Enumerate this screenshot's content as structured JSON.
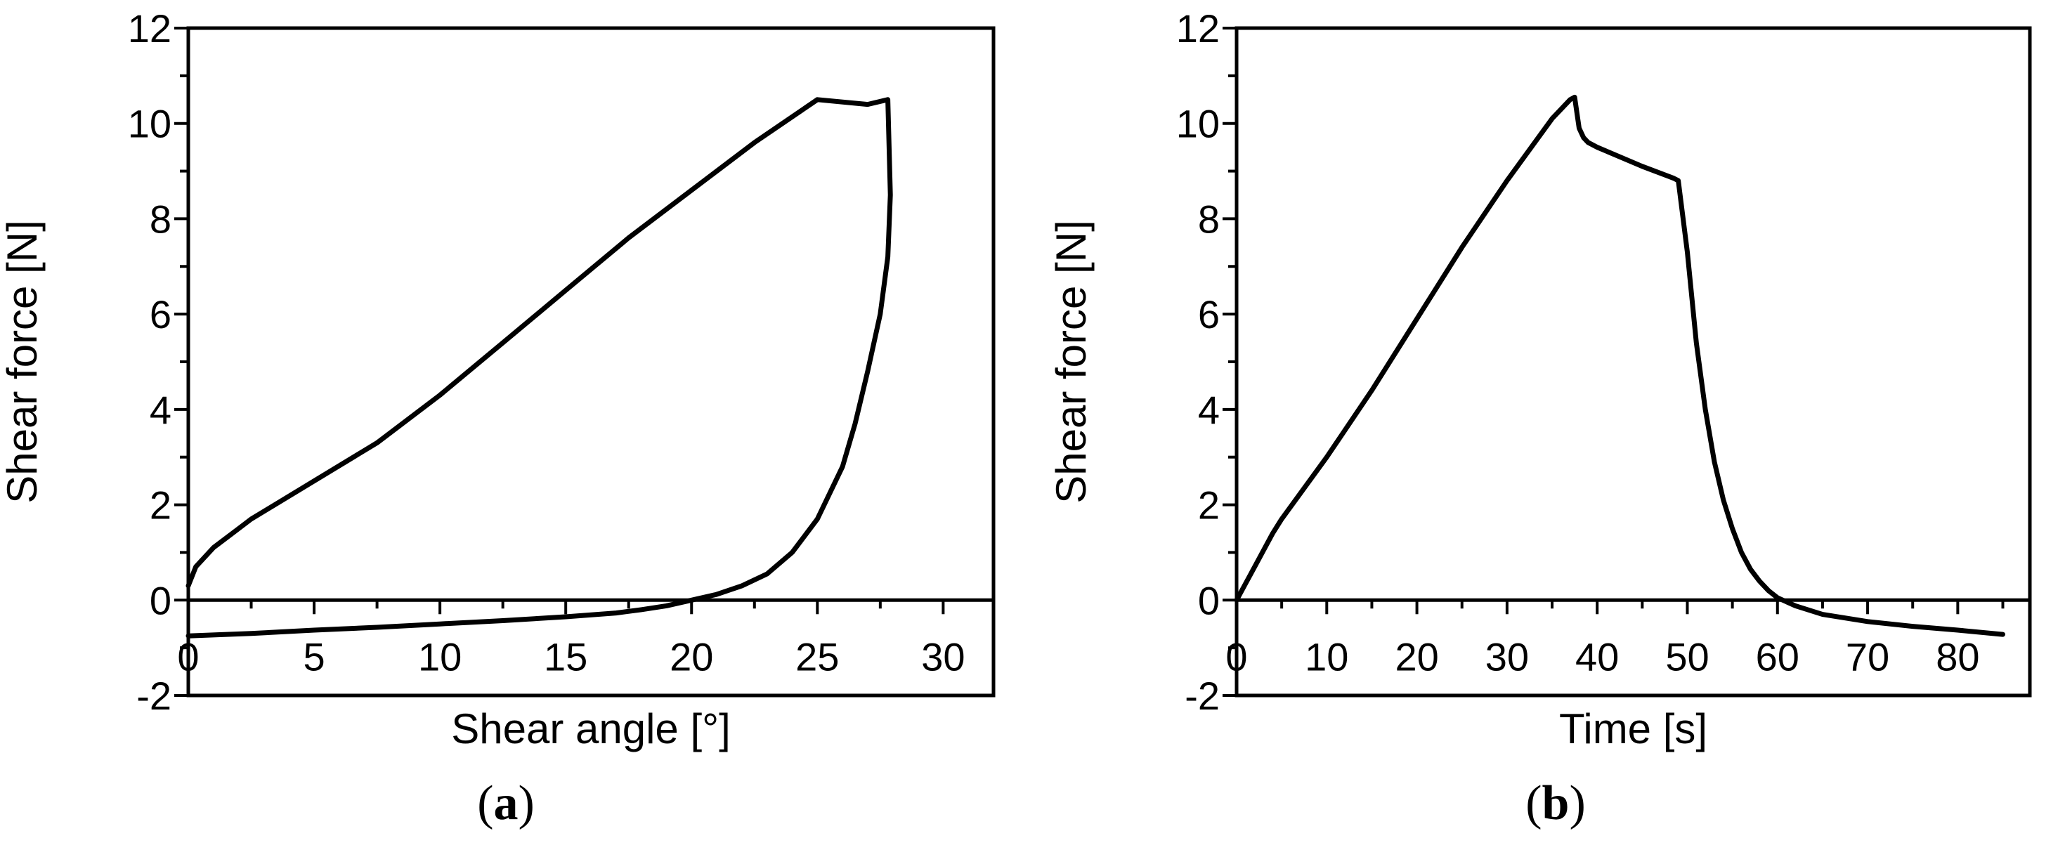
{
  "chart_data": [
    {
      "type": "line",
      "panel_label": "(a)",
      "panel_letter": "a",
      "xlabel": "Shear angle [°]",
      "ylabel": "Shear force [N]",
      "xlim": [
        0,
        32
      ],
      "ylim": [
        -2,
        12
      ],
      "xticks": [
        0,
        5,
        10,
        15,
        20,
        25,
        30
      ],
      "yticks": [
        -2,
        0,
        2,
        4,
        6,
        8,
        10,
        12
      ],
      "grid": false,
      "series": [
        {
          "x": [
            0,
            0.3,
            1,
            2,
            2.5,
            5,
            7.5,
            10,
            12.5,
            15,
            17.5,
            20,
            22.5,
            25,
            27,
            27.8,
            27.9,
            27.9,
            27.8,
            27.5,
            27,
            26.5,
            26,
            25,
            24,
            23,
            22,
            21,
            20,
            19,
            18,
            17,
            15,
            12.5,
            10,
            7.5,
            5,
            2.5,
            0
          ],
          "y": [
            0.3,
            0.7,
            1.1,
            1.5,
            1.7,
            2.5,
            3.3,
            4.3,
            5.4,
            6.5,
            7.6,
            8.6,
            9.6,
            10.5,
            10.4,
            10.5,
            8.5,
            8.5,
            7.2,
            6.0,
            4.8,
            3.7,
            2.8,
            1.7,
            1.0,
            0.55,
            0.3,
            0.12,
            0.0,
            -0.12,
            -0.2,
            -0.27,
            -0.35,
            -0.43,
            -0.5,
            -0.57,
            -0.63,
            -0.7,
            -0.75
          ]
        }
      ]
    },
    {
      "type": "line",
      "panel_label": "(b)",
      "panel_letter": "b",
      "xlabel": "Time [s]",
      "ylabel": "Shear force [N]",
      "xlim": [
        0,
        88
      ],
      "ylim": [
        -2,
        12
      ],
      "xticks": [
        0,
        10,
        20,
        30,
        40,
        50,
        60,
        70,
        80
      ],
      "yticks": [
        -2,
        0,
        2,
        4,
        6,
        8,
        10,
        12
      ],
      "grid": false,
      "series": [
        {
          "x": [
            0,
            2,
            4,
            5,
            10,
            15,
            20,
            25,
            30,
            35,
            37,
            37.5,
            38,
            38.5,
            39,
            40,
            45,
            48.5,
            49,
            50,
            51,
            52,
            53,
            54,
            55,
            56,
            57,
            58,
            59,
            60,
            62,
            65,
            70,
            75,
            80,
            85
          ],
          "y": [
            0,
            0.7,
            1.4,
            1.7,
            3.0,
            4.4,
            5.9,
            7.4,
            8.8,
            10.1,
            10.5,
            10.55,
            9.9,
            9.7,
            9.6,
            9.5,
            9.1,
            8.85,
            8.8,
            7.3,
            5.4,
            4.0,
            2.9,
            2.1,
            1.5,
            1.0,
            0.65,
            0.4,
            0.2,
            0.05,
            -0.12,
            -0.3,
            -0.45,
            -0.55,
            -0.63,
            -0.72
          ]
        }
      ]
    }
  ]
}
